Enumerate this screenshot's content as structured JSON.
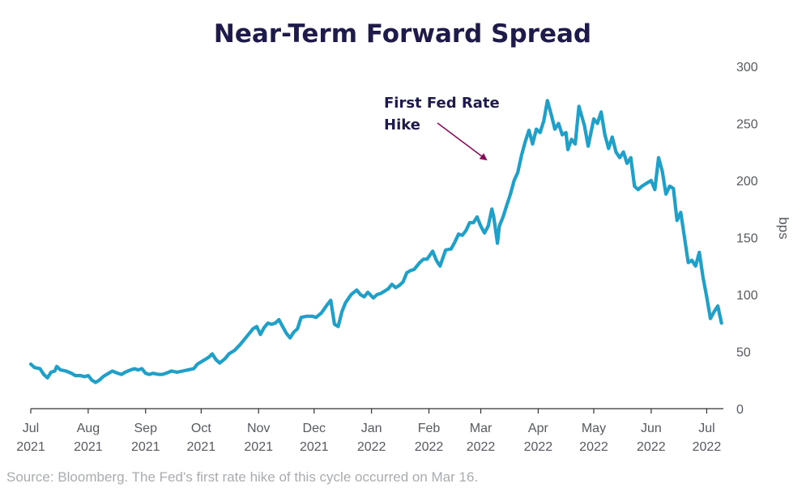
{
  "chart_data": {
    "type": "line",
    "title": "Near-Term Forward Spread",
    "ylabel": "bps",
    "ylim": [
      0,
      300
    ],
    "y_ticks": [
      "0",
      "50",
      "100",
      "150",
      "200",
      "250",
      "300"
    ],
    "y_axis_side": "right",
    "grid": false,
    "x_ticks": [
      {
        "month": "Jul",
        "year": "2021"
      },
      {
        "month": "Aug",
        "year": "2021"
      },
      {
        "month": "Sep",
        "year": "2021"
      },
      {
        "month": "Oct",
        "year": "2021"
      },
      {
        "month": "Nov",
        "year": "2021"
      },
      {
        "month": "Dec",
        "year": "2021"
      },
      {
        "month": "Jan",
        "year": "2022"
      },
      {
        "month": "Feb",
        "year": "2022"
      },
      {
        "month": "Mar",
        "year": "2022"
      },
      {
        "month": "Apr",
        "year": "2022"
      },
      {
        "month": "May",
        "year": "2022"
      },
      {
        "month": "Jun",
        "year": "2022"
      },
      {
        "month": "Jul",
        "year": "2022"
      }
    ],
    "series": [
      {
        "color": "#1fa0c8",
        "points": [
          [
            "2021-07-01",
            39
          ],
          [
            "2021-07-03",
            36
          ],
          [
            "2021-07-06",
            35
          ],
          [
            "2021-07-08",
            30
          ],
          [
            "2021-07-10",
            27
          ],
          [
            "2021-07-12",
            32
          ],
          [
            "2021-07-14",
            33
          ],
          [
            "2021-07-15",
            37
          ],
          [
            "2021-07-17",
            34
          ],
          [
            "2021-07-20",
            33
          ],
          [
            "2021-07-23",
            31
          ],
          [
            "2021-07-25",
            29
          ],
          [
            "2021-07-28",
            29
          ],
          [
            "2021-07-30",
            28
          ],
          [
            "2021-08-01",
            29
          ],
          [
            "2021-08-03",
            25
          ],
          [
            "2021-08-05",
            23
          ],
          [
            "2021-08-07",
            25
          ],
          [
            "2021-08-09",
            28
          ],
          [
            "2021-08-12",
            31
          ],
          [
            "2021-08-14",
            33
          ],
          [
            "2021-08-17",
            31
          ],
          [
            "2021-08-19",
            30
          ],
          [
            "2021-08-21",
            32
          ],
          [
            "2021-08-24",
            34
          ],
          [
            "2021-08-26",
            35
          ],
          [
            "2021-08-28",
            34
          ],
          [
            "2021-08-30",
            35
          ],
          [
            "2021-09-01",
            31
          ],
          [
            "2021-09-03",
            30
          ],
          [
            "2021-09-05",
            31
          ],
          [
            "2021-09-08",
            30
          ],
          [
            "2021-09-10",
            30
          ],
          [
            "2021-09-12",
            31
          ],
          [
            "2021-09-15",
            33
          ],
          [
            "2021-09-18",
            32
          ],
          [
            "2021-09-21",
            33
          ],
          [
            "2021-09-24",
            34
          ],
          [
            "2021-09-27",
            35
          ],
          [
            "2021-09-29",
            39
          ],
          [
            "2021-10-01",
            41
          ],
          [
            "2021-10-03",
            43
          ],
          [
            "2021-10-05",
            45
          ],
          [
            "2021-10-07",
            48
          ],
          [
            "2021-10-09",
            43
          ],
          [
            "2021-10-11",
            40
          ],
          [
            "2021-10-14",
            44
          ],
          [
            "2021-10-16",
            48
          ],
          [
            "2021-10-19",
            51
          ],
          [
            "2021-10-22",
            56
          ],
          [
            "2021-10-25",
            62
          ],
          [
            "2021-10-27",
            66
          ],
          [
            "2021-10-29",
            70
          ],
          [
            "2021-10-31",
            72
          ],
          [
            "2021-11-02",
            65
          ],
          [
            "2021-11-04",
            71
          ],
          [
            "2021-11-06",
            75
          ],
          [
            "2021-11-08",
            74
          ],
          [
            "2021-11-10",
            75
          ],
          [
            "2021-11-12",
            78
          ],
          [
            "2021-11-14",
            72
          ],
          [
            "2021-11-16",
            66
          ],
          [
            "2021-11-18",
            62
          ],
          [
            "2021-11-20",
            67
          ],
          [
            "2021-11-22",
            70
          ],
          [
            "2021-11-24",
            80
          ],
          [
            "2021-11-27",
            81
          ],
          [
            "2021-11-30",
            81
          ],
          [
            "2021-12-02",
            80
          ],
          [
            "2021-12-05",
            84
          ],
          [
            "2021-12-08",
            91
          ],
          [
            "2021-12-10",
            95
          ],
          [
            "2021-12-12",
            74
          ],
          [
            "2021-12-14",
            72
          ],
          [
            "2021-12-16",
            85
          ],
          [
            "2021-12-18",
            93
          ],
          [
            "2021-12-21",
            100
          ],
          [
            "2021-12-24",
            104
          ],
          [
            "2021-12-26",
            100
          ],
          [
            "2021-12-28",
            98
          ],
          [
            "2021-12-30",
            102
          ],
          [
            "2022-01-02",
            97
          ],
          [
            "2022-01-04",
            100
          ],
          [
            "2022-01-06",
            101
          ],
          [
            "2022-01-08",
            103
          ],
          [
            "2022-01-10",
            105
          ],
          [
            "2022-01-12",
            109
          ],
          [
            "2022-01-14",
            106
          ],
          [
            "2022-01-16",
            108
          ],
          [
            "2022-01-18",
            111
          ],
          [
            "2022-01-20",
            119
          ],
          [
            "2022-01-22",
            121
          ],
          [
            "2022-01-24",
            122
          ],
          [
            "2022-01-27",
            128
          ],
          [
            "2022-01-29",
            131
          ],
          [
            "2022-01-31",
            131
          ],
          [
            "2022-02-03",
            138
          ],
          [
            "2022-02-05",
            130
          ],
          [
            "2022-02-07",
            125
          ],
          [
            "2022-02-10",
            139
          ],
          [
            "2022-02-13",
            140
          ],
          [
            "2022-02-15",
            146
          ],
          [
            "2022-02-17",
            153
          ],
          [
            "2022-02-19",
            152
          ],
          [
            "2022-02-21",
            156
          ],
          [
            "2022-02-23",
            163
          ],
          [
            "2022-02-25",
            163
          ],
          [
            "2022-02-27",
            168
          ],
          [
            "2022-03-01",
            160
          ],
          [
            "2022-03-03",
            154
          ],
          [
            "2022-03-05",
            160
          ],
          [
            "2022-03-07",
            175
          ],
          [
            "2022-03-08",
            168
          ],
          [
            "2022-03-10",
            145
          ],
          [
            "2022-03-11",
            160
          ],
          [
            "2022-03-13",
            168
          ],
          [
            "2022-03-15",
            178
          ],
          [
            "2022-03-17",
            188
          ],
          [
            "2022-03-19",
            200
          ],
          [
            "2022-03-21",
            207
          ],
          [
            "2022-03-23",
            222
          ],
          [
            "2022-03-25",
            234
          ],
          [
            "2022-03-27",
            244
          ],
          [
            "2022-03-29",
            232
          ],
          [
            "2022-03-31",
            245
          ],
          [
            "2022-04-02",
            242
          ],
          [
            "2022-04-04",
            252
          ],
          [
            "2022-04-06",
            270
          ],
          [
            "2022-04-08",
            258
          ],
          [
            "2022-04-10",
            245
          ],
          [
            "2022-04-12",
            250
          ],
          [
            "2022-04-14",
            240
          ],
          [
            "2022-04-16",
            242
          ],
          [
            "2022-04-17",
            227
          ],
          [
            "2022-04-19",
            236
          ],
          [
            "2022-04-21",
            232
          ],
          [
            "2022-04-23",
            265
          ],
          [
            "2022-04-26",
            248
          ],
          [
            "2022-04-28",
            230
          ],
          [
            "2022-05-01",
            254
          ],
          [
            "2022-05-03",
            250
          ],
          [
            "2022-05-05",
            260
          ],
          [
            "2022-05-07",
            240
          ],
          [
            "2022-05-09",
            228
          ],
          [
            "2022-05-11",
            238
          ],
          [
            "2022-05-13",
            225
          ],
          [
            "2022-05-15",
            220
          ],
          [
            "2022-05-17",
            225
          ],
          [
            "2022-05-19",
            215
          ],
          [
            "2022-05-21",
            220
          ],
          [
            "2022-05-23",
            195
          ],
          [
            "2022-05-25",
            192
          ],
          [
            "2022-05-27",
            195
          ],
          [
            "2022-05-30",
            198
          ],
          [
            "2022-06-01",
            200
          ],
          [
            "2022-06-03",
            192
          ],
          [
            "2022-06-05",
            220
          ],
          [
            "2022-06-07",
            208
          ],
          [
            "2022-06-09",
            188
          ],
          [
            "2022-06-11",
            195
          ],
          [
            "2022-06-13",
            193
          ],
          [
            "2022-06-15",
            165
          ],
          [
            "2022-06-17",
            172
          ],
          [
            "2022-06-19",
            150
          ],
          [
            "2022-06-21",
            128
          ],
          [
            "2022-06-23",
            130
          ],
          [
            "2022-06-25",
            125
          ],
          [
            "2022-06-27",
            137
          ],
          [
            "2022-06-29",
            115
          ],
          [
            "2022-07-01",
            98
          ],
          [
            "2022-07-03",
            79
          ],
          [
            "2022-07-05",
            85
          ],
          [
            "2022-07-07",
            90
          ],
          [
            "2022-07-09",
            75
          ]
        ]
      }
    ],
    "annotations": [
      {
        "lines": [
          "First Fed Rate",
          "Hike"
        ],
        "points_to": "2022-03-16",
        "arrow_color": "#8b0d5a"
      }
    ],
    "source": "Source: Bloomberg. The Fed's first rate hike of this cycle occurred on Mar 16."
  }
}
